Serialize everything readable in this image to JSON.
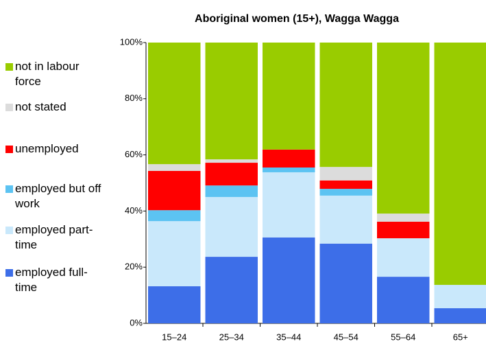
{
  "chart_data": {
    "type": "stacked_bar",
    "title": "Aboriginal women (15+), Wagga Wagga",
    "categories": [
      "15–24",
      "25–34",
      "35–44",
      "45–54",
      "55–64",
      "65+"
    ],
    "series": [
      {
        "name": "employed full-time",
        "color": "#3d6ee8",
        "values": [
          13.2,
          23.7,
          30.6,
          28.4,
          16.6,
          5.4
        ]
      },
      {
        "name": "employed part-time",
        "color": "#c9e8fb",
        "values": [
          23.2,
          21.3,
          23.2,
          17.1,
          13.7,
          8.3
        ]
      },
      {
        "name": "employed but off work",
        "color": "#5cc3f2",
        "values": [
          3.9,
          4.1,
          1.7,
          2.4,
          0,
          0
        ]
      },
      {
        "name": "unemployed",
        "color": "#ff0000",
        "values": [
          14.0,
          8.1,
          6.4,
          3.0,
          5.9,
          0
        ]
      },
      {
        "name": "not stated",
        "color": "#dcdcdc",
        "values": [
          2.4,
          1.2,
          0,
          4.8,
          2.9,
          0
        ]
      },
      {
        "name": "not in labour force",
        "color": "#99cc00",
        "values": [
          43.3,
          41.6,
          38.1,
          44.3,
          60.9,
          86.3
        ]
      }
    ],
    "ylim": [
      0,
      100
    ],
    "yticks": [
      {
        "value": 0,
        "label": "0%"
      },
      {
        "value": 20,
        "label": "20%"
      },
      {
        "value": 40,
        "label": "40%"
      },
      {
        "value": 60,
        "label": "60%"
      },
      {
        "value": 80,
        "label": "80%"
      },
      {
        "value": 100,
        "label": "100%"
      }
    ]
  }
}
